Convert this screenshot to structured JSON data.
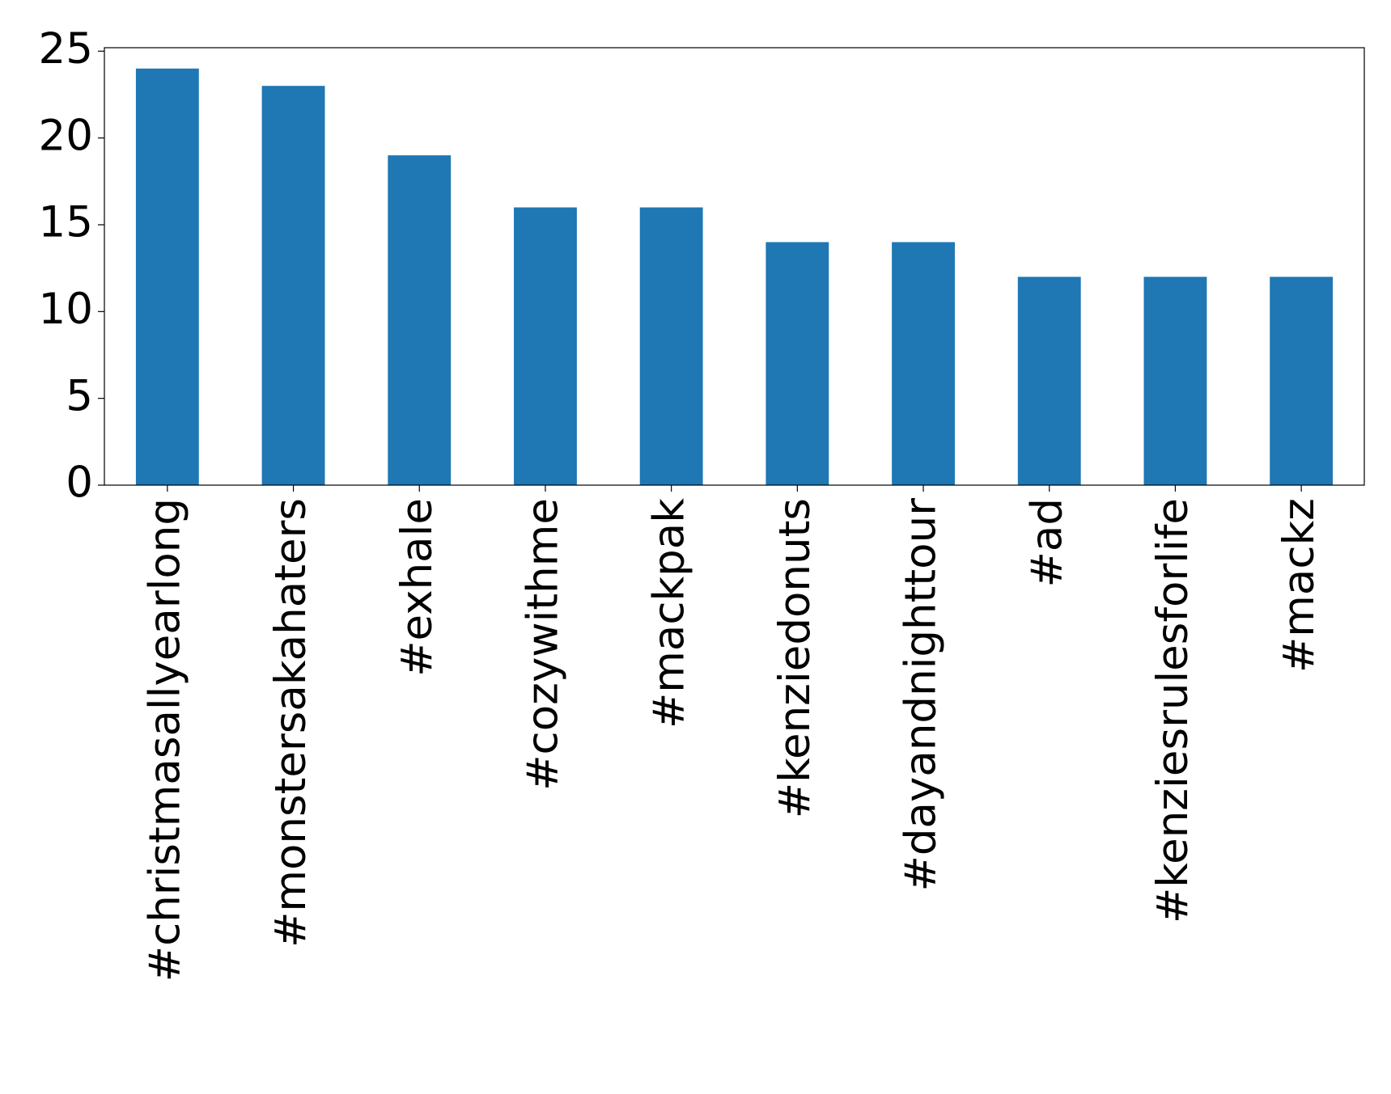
{
  "chart_data": {
    "type": "bar",
    "categories": [
      "#christmasallyearlong",
      "#monstersakahaters",
      "#exhale",
      "#cozywithme",
      "#mackpak",
      "#kenziedonuts",
      "#dayandnighttour",
      "#ad",
      "#kenziesrulesforlife",
      "#mackz"
    ],
    "values": [
      24,
      23,
      19,
      16,
      16,
      14,
      14,
      12,
      12,
      12
    ],
    "color": "#1f77b4",
    "ylim": [
      0,
      25.2
    ],
    "yticks": [
      0,
      5,
      10,
      15,
      20,
      25
    ],
    "grid": false
  }
}
